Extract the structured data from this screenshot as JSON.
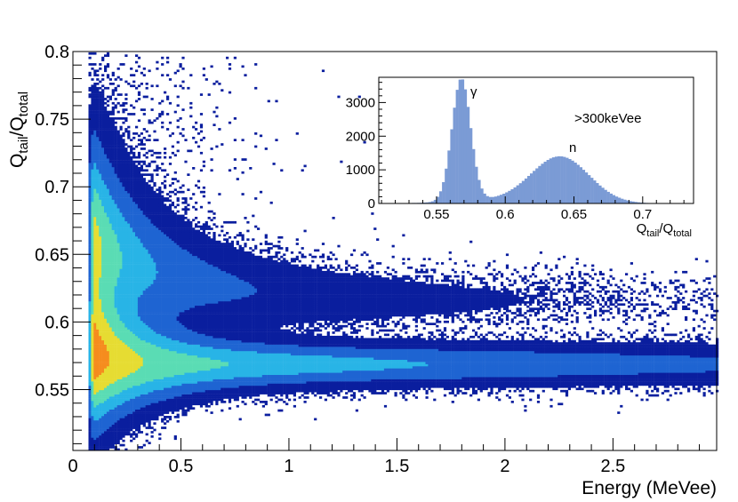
{
  "chart_data": [
    {
      "type": "heatmap",
      "xlabel": "Energy (MeVee)",
      "ylabel_parts": {
        "q1": "Q",
        "sub1": "tail",
        "slash": "/",
        "q2": "Q",
        "sub2": "total"
      },
      "xlim": [
        0,
        2.98
      ],
      "ylim": [
        0.505,
        0.8
      ],
      "x_ticks": [
        0,
        0.5,
        1,
        1.5,
        2,
        2.5
      ],
      "x_tick_labels": [
        "0",
        "0.5",
        "1",
        "1.5",
        "2",
        "2.5"
      ],
      "y_ticks": [
        0.55,
        0.6,
        0.65,
        0.7,
        0.75,
        0.8
      ],
      "y_tick_labels": [
        "0.55",
        "0.6",
        "0.65",
        "0.7",
        "0.75",
        "0.8"
      ],
      "bands": [
        {
          "label": "γ",
          "center_y": 0.568,
          "spread_y": 0.012,
          "x_range": [
            0.06,
            2.98
          ]
        },
        {
          "label": "n",
          "center_y_low_energy": 0.665,
          "center_y_high_energy": 0.615,
          "x_range": [
            0.06,
            2.98
          ]
        }
      ],
      "colormap": [
        "#0a1e9e",
        "#1e64d2",
        "#28b4e6",
        "#5adcb4",
        "#e6dc32",
        "#f58c1e",
        "#dc1e14"
      ],
      "peak_region": {
        "x": 0.15,
        "y": 0.665
      }
    },
    {
      "type": "bar",
      "inset": true,
      "xlabel_parts": {
        "q1": "Q",
        "sub1": "tail",
        "slash": "/",
        "q2": "Q",
        "sub2": "total"
      },
      "xlim": [
        0.508,
        0.737
      ],
      "ylim": [
        0,
        3750
      ],
      "x_ticks": [
        0.55,
        0.6,
        0.65,
        0.7
      ],
      "x_tick_labels": [
        "0.55",
        "0.6",
        "0.65",
        "0.7"
      ],
      "y_ticks": [
        0,
        1000,
        2000,
        3000
      ],
      "y_tick_labels": [
        "0",
        "1000",
        "2000",
        "3000"
      ],
      "peaks": [
        {
          "label": "γ",
          "x": 0.568,
          "height": 3650
        },
        {
          "label": "n",
          "x": 0.64,
          "height": 1380
        }
      ],
      "annotation": ">300keVee",
      "color": "#7b9bd5"
    }
  ]
}
